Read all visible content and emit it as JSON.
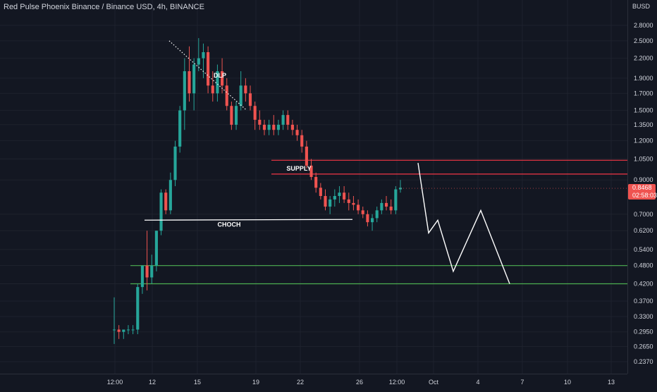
{
  "header": {
    "symbol_title": "Red Pulse Phoenix Binance / Binance USD, 4h, BINANCE"
  },
  "price_scale": {
    "currency": "BUSD",
    "ticks": [
      "2.8000",
      "2.5000",
      "2.2000",
      "1.9000",
      "1.7000",
      "1.5000",
      "1.3500",
      "1.2000",
      "1.0500",
      "0.9000",
      "0.7000",
      "0.6200",
      "0.5400",
      "0.4800",
      "0.4200",
      "0.3700",
      "0.3300",
      "0.2950",
      "0.2650",
      "0.2370"
    ],
    "last_price": "0.8468",
    "countdown": "02:58:03"
  },
  "time_scale": {
    "ticks": [
      "12:00",
      "12",
      "15",
      "19",
      "22",
      "26",
      "12:00",
      "Oct",
      "4",
      "7",
      "10",
      "13"
    ]
  },
  "annotations": {
    "supply_label": "SUPPLY",
    "choch_label": "CHOCH",
    "dlp_label": "DLP"
  },
  "colors": {
    "background": "#131722",
    "up_candle": "#26a69a",
    "down_candle": "#ef5350",
    "supply_zone": "#f23645",
    "demand_zone": "#4caf50",
    "projection": "#ffffff"
  },
  "chart_data": {
    "type": "candlestick",
    "symbol": "Red Pulse Phoenix Binance / Binance USD",
    "interval": "4h",
    "exchange": "BINANCE",
    "y_unit": "BUSD",
    "y_scale": "log",
    "ylim": [
      0.22,
      3.0
    ],
    "last_price": 0.8468,
    "zones": [
      {
        "name": "SUPPLY",
        "low": 0.94,
        "high": 1.04
      },
      {
        "name": "demand",
        "low": 0.42,
        "high": 0.48
      }
    ],
    "choch_level": 0.67,
    "dlp_line": [
      2.5,
      1.5
    ],
    "candles": [
      [
        0.3,
        0.38,
        0.27,
        0.3
      ],
      [
        0.3,
        0.31,
        0.28,
        0.295
      ],
      [
        0.295,
        0.3,
        0.28,
        0.3
      ],
      [
        0.3,
        0.31,
        0.29,
        0.3
      ],
      [
        0.3,
        0.31,
        0.29,
        0.3
      ],
      [
        0.3,
        0.42,
        0.29,
        0.41
      ],
      [
        0.41,
        0.48,
        0.39,
        0.48
      ],
      [
        0.48,
        0.62,
        0.4,
        0.44
      ],
      [
        0.44,
        0.52,
        0.42,
        0.48
      ],
      [
        0.48,
        0.62,
        0.46,
        0.62
      ],
      [
        0.62,
        0.84,
        0.6,
        0.82
      ],
      [
        0.82,
        0.84,
        0.7,
        0.72
      ],
      [
        0.72,
        0.95,
        0.7,
        0.9
      ],
      [
        0.9,
        1.2,
        0.86,
        1.15
      ],
      [
        1.15,
        1.55,
        1.1,
        1.5
      ],
      [
        1.5,
        2.2,
        1.3,
        2.0
      ],
      [
        2.0,
        2.4,
        1.6,
        1.7
      ],
      [
        1.7,
        2.2,
        1.5,
        2.1
      ],
      [
        2.1,
        2.55,
        2.0,
        2.2
      ],
      [
        2.2,
        2.45,
        1.9,
        2.3
      ],
      [
        2.3,
        2.4,
        1.7,
        1.8
      ],
      [
        1.8,
        2.0,
        1.6,
        1.7
      ],
      [
        1.7,
        2.1,
        1.6,
        2.0
      ],
      [
        2.0,
        2.2,
        1.7,
        1.8
      ],
      [
        1.8,
        1.9,
        1.5,
        1.55
      ],
      [
        1.55,
        1.6,
        1.3,
        1.35
      ],
      [
        1.35,
        1.6,
        1.3,
        1.55
      ],
      [
        1.55,
        2.0,
        1.5,
        1.8
      ],
      [
        1.8,
        1.9,
        1.6,
        1.7
      ],
      [
        1.7,
        1.8,
        1.5,
        1.55
      ],
      [
        1.55,
        1.6,
        1.3,
        1.4
      ],
      [
        1.4,
        1.5,
        1.3,
        1.35
      ],
      [
        1.35,
        1.4,
        1.25,
        1.3
      ],
      [
        1.3,
        1.4,
        1.25,
        1.35
      ],
      [
        1.35,
        1.45,
        1.25,
        1.3
      ],
      [
        1.3,
        1.4,
        1.25,
        1.35
      ],
      [
        1.35,
        1.5,
        1.3,
        1.45
      ],
      [
        1.45,
        1.5,
        1.3,
        1.35
      ],
      [
        1.35,
        1.4,
        1.25,
        1.3
      ],
      [
        1.3,
        1.35,
        1.2,
        1.25
      ],
      [
        1.25,
        1.3,
        1.1,
        1.15
      ],
      [
        1.15,
        1.2,
        0.98,
        1.0
      ],
      [
        1.0,
        1.05,
        0.9,
        0.92
      ],
      [
        0.92,
        0.95,
        0.82,
        0.85
      ],
      [
        0.85,
        0.88,
        0.78,
        0.8
      ],
      [
        0.8,
        0.84,
        0.72,
        0.74
      ],
      [
        0.74,
        0.8,
        0.7,
        0.78
      ],
      [
        0.78,
        0.84,
        0.74,
        0.8
      ],
      [
        0.8,
        0.86,
        0.76,
        0.82
      ],
      [
        0.82,
        0.86,
        0.76,
        0.78
      ],
      [
        0.78,
        0.82,
        0.72,
        0.76
      ],
      [
        0.76,
        0.8,
        0.72,
        0.75
      ],
      [
        0.75,
        0.78,
        0.7,
        0.72
      ],
      [
        0.72,
        0.74,
        0.68,
        0.7
      ],
      [
        0.7,
        0.72,
        0.64,
        0.66
      ],
      [
        0.66,
        0.7,
        0.62,
        0.68
      ],
      [
        0.68,
        0.74,
        0.66,
        0.72
      ],
      [
        0.72,
        0.78,
        0.7,
        0.76
      ],
      [
        0.76,
        0.8,
        0.72,
        0.74
      ],
      [
        0.74,
        0.78,
        0.7,
        0.72
      ],
      [
        0.72,
        0.86,
        0.7,
        0.84
      ],
      [
        0.84,
        0.9,
        0.82,
        0.85
      ]
    ],
    "projection_path": [
      1.02,
      0.61,
      0.67,
      0.46,
      0.72,
      0.42
    ]
  }
}
